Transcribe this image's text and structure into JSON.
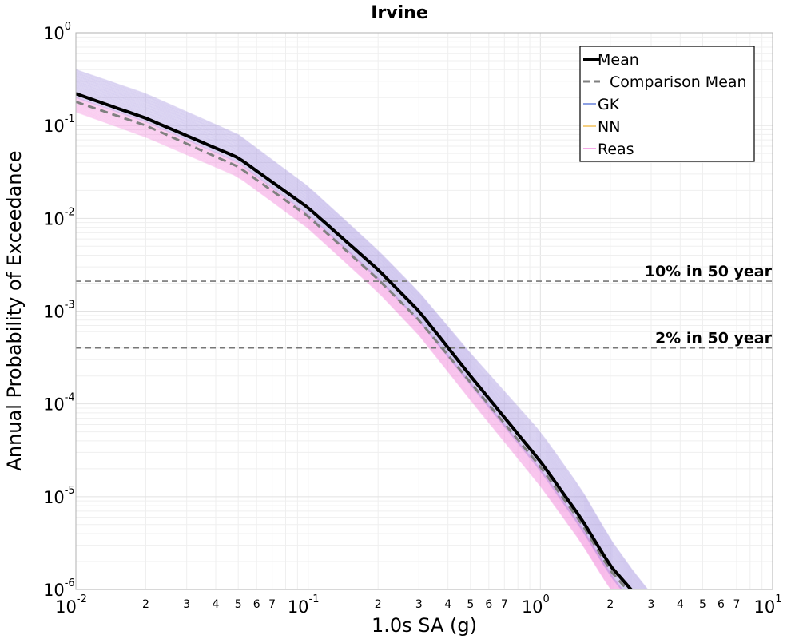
{
  "chart_data": {
    "type": "line",
    "title": "Irvine",
    "xlabel": "1.0s SA (g)",
    "ylabel": "Annual Probability of Exceedance",
    "x_scale": "log",
    "y_scale": "log",
    "xlim": [
      0.01,
      10
    ],
    "ylim": [
      1e-06,
      1
    ],
    "x_major_ticks": [
      {
        "base": "10",
        "exp": "-2",
        "value": 0.01
      },
      {
        "base": "10",
        "exp": "-1",
        "value": 0.1
      },
      {
        "base": "10",
        "exp": "0",
        "value": 1
      },
      {
        "base": "10",
        "exp": "1",
        "value": 10
      }
    ],
    "x_minor_tick_labels": [
      "2",
      "3",
      "4",
      "5",
      "6",
      "7"
    ],
    "y_major_ticks": [
      {
        "base": "10",
        "exp": "0",
        "value": 1
      },
      {
        "base": "10",
        "exp": "-1",
        "value": 0.1
      },
      {
        "base": "10",
        "exp": "-2",
        "value": 0.01
      },
      {
        "base": "10",
        "exp": "-3",
        "value": 0.001
      },
      {
        "base": "10",
        "exp": "-4",
        "value": 0.0001
      },
      {
        "base": "10",
        "exp": "-5",
        "value": 1e-05
      },
      {
        "base": "10",
        "exp": "-6",
        "value": 1e-06
      }
    ],
    "grid": true,
    "legend_position": "top-right",
    "legend": [
      {
        "label": "Mean",
        "color": "#000000",
        "style": "solid-thick"
      },
      {
        "label": "Comparison Mean",
        "color": "#808080",
        "style": "dashed"
      },
      {
        "label": "GK",
        "color": "#4060d0",
        "style": "solid"
      },
      {
        "label": "NN",
        "color": "#f0b030",
        "style": "solid"
      },
      {
        "label": "Reas",
        "color": "#f070d8",
        "style": "solid"
      }
    ],
    "hlines": [
      {
        "label": "10% in 50 year",
        "y": 0.0021
      },
      {
        "label": "2% in 50 year",
        "y": 0.0004
      }
    ],
    "mean_curve": {
      "x": [
        0.01,
        0.02,
        0.05,
        0.1,
        0.2,
        0.3,
        0.5,
        1.0,
        1.5,
        2.0,
        2.5
      ],
      "y": [
        0.22,
        0.12,
        0.045,
        0.013,
        0.0028,
        0.001,
        0.0002,
        2.4e-05,
        5.8e-06,
        1.8e-06,
        9.5e-07
      ]
    },
    "comparison_mean_curve": {
      "x": [
        0.01,
        0.02,
        0.05,
        0.1,
        0.2,
        0.3,
        0.5,
        1.0,
        1.5,
        2.0,
        2.5
      ],
      "y": [
        0.18,
        0.1,
        0.036,
        0.0105,
        0.0022,
        0.0008,
        0.00017,
        2.1e-05,
        5.2e-06,
        1.6e-06,
        8.5e-07
      ]
    },
    "gk_band": {
      "x": [
        0.01,
        0.02,
        0.05,
        0.1,
        0.2,
        0.3,
        0.5,
        1.0,
        1.5,
        2.0,
        2.5,
        3.0
      ],
      "upper": [
        0.4,
        0.22,
        0.08,
        0.022,
        0.0045,
        0.0016,
        0.00035,
        5e-05,
        1.2e-05,
        3.5e-06,
        1.6e-06,
        9e-07
      ],
      "lower": [
        0.2,
        0.11,
        0.04,
        0.011,
        0.0022,
        0.00078,
        0.00016,
        1.9e-05,
        4.5e-06,
        1.4e-06,
        7e-07,
        4e-07
      ]
    },
    "reas_band": {
      "x": [
        0.01,
        0.02,
        0.05,
        0.1,
        0.2,
        0.3,
        0.5,
        1.0,
        1.5,
        2.0,
        2.5
      ],
      "upper": [
        0.2,
        0.11,
        0.04,
        0.011,
        0.0023,
        0.0008,
        0.00017,
        2e-05,
        4.8e-06,
        1.5e-06,
        7e-07
      ],
      "lower": [
        0.14,
        0.075,
        0.028,
        0.0078,
        0.0016,
        0.00055,
        0.00011,
        1.3e-05,
        3.2e-06,
        1e-06,
        5e-07
      ]
    }
  }
}
